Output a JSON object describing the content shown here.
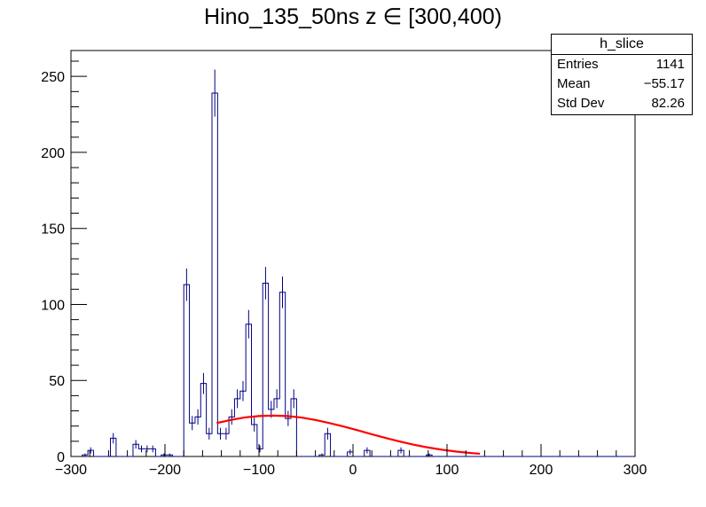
{
  "title": "Hino_135_50ns z  ∈ [300,400)",
  "stats": {
    "name": "h_slice",
    "rows": [
      {
        "label": "Entries",
        "value": "1141"
      },
      {
        "label": "Mean",
        "value": "−55.17"
      },
      {
        "label": "Std Dev",
        "value": "82.26"
      }
    ]
  },
  "colors": {
    "histogram": "#000080",
    "fit": "#ff0000"
  },
  "chart_data": {
    "type": "histogram",
    "title": "Hino_135_50ns z  ∈ [300,400)",
    "xlabel": "",
    "ylabel": "",
    "xlim": [
      -300,
      300
    ],
    "ylim": [
      0,
      267
    ],
    "x_ticks": [
      -300,
      -200,
      -100,
      0,
      100,
      200,
      300
    ],
    "x_tick_labels": [
      "−300",
      "−200",
      "−100",
      "0",
      "100",
      "200",
      "300"
    ],
    "y_ticks": [
      0,
      50,
      100,
      150,
      200,
      250
    ],
    "y_tick_labels": [
      "0",
      "50",
      "100",
      "150",
      "200",
      "250"
    ],
    "bin_width": 6,
    "bin_edges_start": -300,
    "series": [
      {
        "kind": "step-histogram-with-errors",
        "values": [
          0,
          0,
          1,
          4,
          0,
          0,
          0,
          12,
          0,
          0,
          0,
          8,
          5,
          5,
          5,
          0,
          1,
          1,
          0,
          0,
          113,
          22,
          26,
          48,
          15,
          239,
          15,
          15,
          26,
          38,
          43,
          87,
          21,
          5,
          114,
          31,
          38,
          108,
          25,
          38,
          0,
          0,
          0,
          0,
          1,
          15,
          0,
          0,
          0,
          3,
          0,
          0,
          4,
          0,
          0,
          0,
          0,
          0,
          4,
          0,
          0,
          0,
          0,
          1,
          0,
          0,
          0,
          0,
          0,
          0,
          0,
          0,
          0,
          0,
          0,
          0,
          0,
          0,
          0,
          0,
          0,
          0,
          0,
          0,
          0,
          0,
          0,
          0,
          0,
          0,
          0,
          0,
          0,
          0,
          0,
          0,
          0,
          0,
          0,
          0
        ]
      },
      {
        "kind": "fit-curve",
        "x": [
          -145,
          -130,
          -115,
          -100,
          -85,
          -70,
          -55,
          -40,
          -25,
          -10,
          5,
          20,
          35,
          50,
          65,
          80,
          95,
          110,
          125,
          135
        ],
        "y": [
          22,
          24,
          25.7,
          26.6,
          26.9,
          26.6,
          25.6,
          24.0,
          22.0,
          19.7,
          17.2,
          14.6,
          12.1,
          9.8,
          7.7,
          5.9,
          4.4,
          3.2,
          2.3,
          1.8
        ]
      }
    ]
  }
}
